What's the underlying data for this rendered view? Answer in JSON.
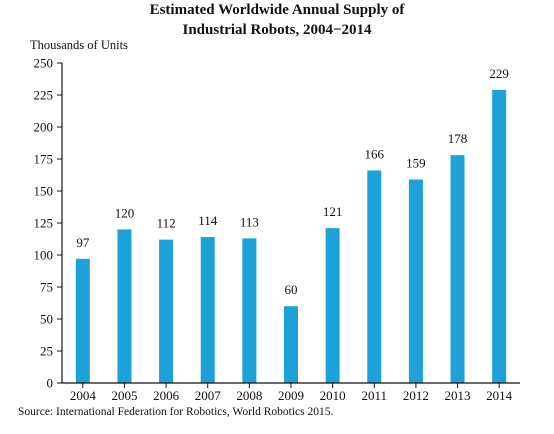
{
  "chart_data": {
    "type": "bar",
    "title_lines": [
      "Estimated Worldwide Annual Supply of",
      "Industrial Robots, 2004−2014"
    ],
    "ylabel": "Thousands of Units",
    "xlabel": "",
    "categories": [
      "2004",
      "2005",
      "2006",
      "2007",
      "2008",
      "2009",
      "2010",
      "2011",
      "2012",
      "2013",
      "2014"
    ],
    "values": [
      97,
      120,
      112,
      114,
      113,
      60,
      121,
      166,
      159,
      178,
      229
    ],
    "data_labels": [
      "97",
      "120",
      "112",
      "114",
      "113",
      "60",
      "121",
      "166",
      "159",
      "178",
      "229"
    ],
    "ylim": [
      0,
      250
    ],
    "yticks": [
      0,
      25,
      50,
      75,
      100,
      125,
      150,
      175,
      200,
      225,
      250
    ],
    "ytick_labels": [
      "0",
      "25",
      "50",
      "75",
      "100",
      "125",
      "150",
      "175",
      "200",
      "225",
      "250"
    ],
    "grid": false,
    "legend": "none",
    "bar_color": "#1ea0d8",
    "axis_color": "#111111",
    "source": "Source: International Federation for Robotics, World Robotics 2015."
  }
}
